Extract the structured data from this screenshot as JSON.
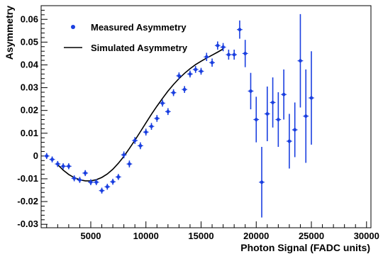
{
  "chart_data": {
    "type": "scatter",
    "xlabel": "Photon Signal (FADC units)",
    "ylabel": "Asymmetry",
    "xlim": [
      500,
      30400
    ],
    "ylim": [
      -0.0315,
      0.066
    ],
    "x_ticks": [
      5000,
      10000,
      15000,
      20000,
      25000,
      30000
    ],
    "y_ticks": [
      -0.03,
      -0.02,
      -0.01,
      0,
      0.01,
      0.02,
      0.03,
      0.04,
      0.05,
      0.06
    ],
    "x_tick_labels": [
      "5000",
      "10000",
      "15000",
      "20000",
      "25000",
      "30000"
    ],
    "y_tick_labels": [
      "-0.03",
      "-0.02",
      "-0.01",
      "0",
      "0.01",
      "0.02",
      "0.03",
      "0.04",
      "0.05",
      "0.06"
    ],
    "grid": false,
    "legend_position": "top-left",
    "legend": [
      {
        "label": "Measured Asymmetry",
        "marker": "dot"
      },
      {
        "label": "Simulated Asymmetry",
        "marker": "line"
      }
    ],
    "series": [
      {
        "name": "Measured Asymmetry",
        "kind": "points_with_errors",
        "color": "#1a3fe0",
        "x_err": 250,
        "points": [
          {
            "x": 1000,
            "y": 0.0,
            "err": 0.0013
          },
          {
            "x": 1500,
            "y": -0.0015,
            "err": 0.0013
          },
          {
            "x": 2000,
            "y": -0.0035,
            "err": 0.0013
          },
          {
            "x": 2500,
            "y": -0.0045,
            "err": 0.0013
          },
          {
            "x": 3000,
            "y": -0.0045,
            "err": 0.0013
          },
          {
            "x": 3500,
            "y": -0.0098,
            "err": 0.0013
          },
          {
            "x": 4000,
            "y": -0.0105,
            "err": 0.0013
          },
          {
            "x": 4500,
            "y": -0.0075,
            "err": 0.0013
          },
          {
            "x": 5000,
            "y": -0.0115,
            "err": 0.0013
          },
          {
            "x": 5500,
            "y": -0.0115,
            "err": 0.0013
          },
          {
            "x": 6000,
            "y": -0.0152,
            "err": 0.0013
          },
          {
            "x": 6500,
            "y": -0.0135,
            "err": 0.0013
          },
          {
            "x": 7000,
            "y": -0.0113,
            "err": 0.0013
          },
          {
            "x": 7500,
            "y": -0.0092,
            "err": 0.0013
          },
          {
            "x": 8000,
            "y": 0.0005,
            "err": 0.0015
          },
          {
            "x": 8500,
            "y": -0.0035,
            "err": 0.0015
          },
          {
            "x": 9000,
            "y": 0.0068,
            "err": 0.0015
          },
          {
            "x": 9500,
            "y": 0.0045,
            "err": 0.0015
          },
          {
            "x": 10000,
            "y": 0.0105,
            "err": 0.0015
          },
          {
            "x": 10500,
            "y": 0.013,
            "err": 0.0015
          },
          {
            "x": 11000,
            "y": 0.0165,
            "err": 0.0015
          },
          {
            "x": 11500,
            "y": 0.0232,
            "err": 0.0015
          },
          {
            "x": 12000,
            "y": 0.0195,
            "err": 0.0015
          },
          {
            "x": 12500,
            "y": 0.0278,
            "err": 0.0015
          },
          {
            "x": 13000,
            "y": 0.0352,
            "err": 0.0015
          },
          {
            "x": 13500,
            "y": 0.0292,
            "err": 0.0015
          },
          {
            "x": 14000,
            "y": 0.036,
            "err": 0.0015
          },
          {
            "x": 14500,
            "y": 0.038,
            "err": 0.0015
          },
          {
            "x": 15000,
            "y": 0.0372,
            "err": 0.0015
          },
          {
            "x": 15500,
            "y": 0.0435,
            "err": 0.0018
          },
          {
            "x": 16000,
            "y": 0.041,
            "err": 0.0018
          },
          {
            "x": 16500,
            "y": 0.0485,
            "err": 0.0018
          },
          {
            "x": 17000,
            "y": 0.0478,
            "err": 0.0018
          },
          {
            "x": 17500,
            "y": 0.0445,
            "err": 0.0022
          },
          {
            "x": 18000,
            "y": 0.0445,
            "err": 0.0022
          },
          {
            "x": 18500,
            "y": 0.0555,
            "err": 0.004
          },
          {
            "x": 19000,
            "y": 0.045,
            "err": 0.006
          },
          {
            "x": 19500,
            "y": 0.0285,
            "err": 0.008
          },
          {
            "x": 20000,
            "y": 0.016,
            "err": 0.01
          },
          {
            "x": 20500,
            "y": -0.0115,
            "err": 0.0155
          },
          {
            "x": 21000,
            "y": 0.0185,
            "err": 0.012
          },
          {
            "x": 21500,
            "y": 0.0235,
            "err": 0.011
          },
          {
            "x": 22000,
            "y": 0.016,
            "err": 0.012
          },
          {
            "x": 22500,
            "y": 0.027,
            "err": 0.011
          },
          {
            "x": 23000,
            "y": 0.0065,
            "err": 0.012
          },
          {
            "x": 23500,
            "y": 0.0115,
            "err": 0.012
          },
          {
            "x": 24000,
            "y": 0.0418,
            "err": 0.0205
          },
          {
            "x": 24500,
            "y": 0.0175,
            "err": 0.0205
          },
          {
            "x": 25000,
            "y": 0.0255,
            "err": 0.0205
          }
        ]
      },
      {
        "name": "Simulated Asymmetry",
        "kind": "line",
        "color": "#000000",
        "x": [
          2000,
          2500,
          3000,
          3500,
          4000,
          4500,
          5000,
          5500,
          6000,
          6500,
          7000,
          7500,
          8000,
          8500,
          9000,
          9500,
          10000,
          10500,
          11000,
          11500,
          12000,
          12500,
          13000,
          13500,
          14000,
          14500,
          15000,
          15500,
          16000,
          16500,
          17000
        ],
        "y": [
          -0.0038,
          -0.0062,
          -0.0081,
          -0.0095,
          -0.0104,
          -0.0109,
          -0.0109,
          -0.0104,
          -0.0094,
          -0.0079,
          -0.0058,
          -0.0032,
          -0.0002,
          0.0033,
          0.0069,
          0.0107,
          0.0145,
          0.0183,
          0.0219,
          0.0253,
          0.0285,
          0.0314,
          0.034,
          0.0363,
          0.0383,
          0.0401,
          0.0416,
          0.043,
          0.0443,
          0.0456,
          0.047
        ]
      }
    ]
  }
}
